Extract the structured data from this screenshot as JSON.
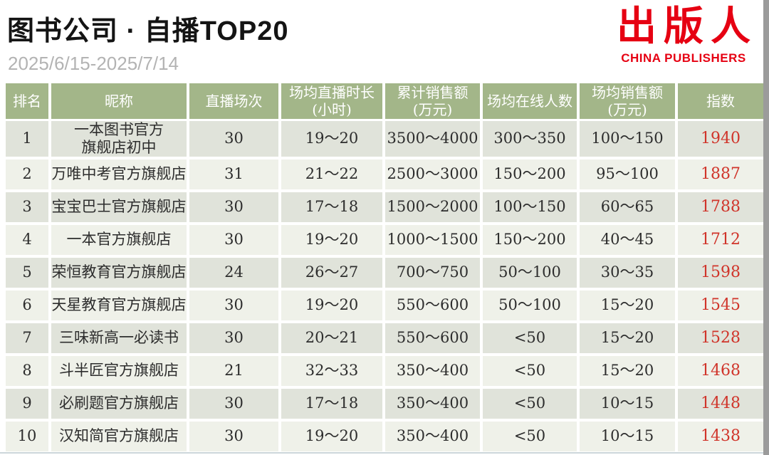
{
  "page": {
    "title": "图书公司 · 自播TOP20",
    "date_range": "2025/6/15-2025/7/14"
  },
  "logo": {
    "cn": "出版人",
    "en": "CHINA PUBLISHERS",
    "color": "#e60012"
  },
  "colors": {
    "header_green": "#a3b689",
    "row_dark": "#e0e3da",
    "row_light": "#eff1e9",
    "index_red": "#d0342a",
    "date_gray": "#b3b3b3"
  },
  "table": {
    "columns": [
      "排名",
      "昵称",
      "直播场次",
      "场均直播时长\n(小时)",
      "累计销售额\n(万元)",
      "场均在线人数",
      "场均销售额\n(万元)",
      "指数"
    ],
    "rows": [
      {
        "rank": "1",
        "name": "一本图书官方\n旗舰店初中",
        "sessions": "30",
        "avg_duration": "19～20",
        "total_sales": "3500～4000",
        "avg_online": "300～350",
        "avg_sales": "100～150",
        "index": "1940"
      },
      {
        "rank": "2",
        "name": "万唯中考官方旗舰店",
        "sessions": "31",
        "avg_duration": "21～22",
        "total_sales": "2500～3000",
        "avg_online": "150～200",
        "avg_sales": "95～100",
        "index": "1887"
      },
      {
        "rank": "3",
        "name": "宝宝巴士官方旗舰店",
        "sessions": "30",
        "avg_duration": "17～18",
        "total_sales": "1500～2000",
        "avg_online": "100～150",
        "avg_sales": "60～65",
        "index": "1788"
      },
      {
        "rank": "4",
        "name": "一本官方旗舰店",
        "sessions": "30",
        "avg_duration": "19～20",
        "total_sales": "1000～1500",
        "avg_online": "150～200",
        "avg_sales": "40～45",
        "index": "1712"
      },
      {
        "rank": "5",
        "name": "荣恒教育官方旗舰店",
        "sessions": "24",
        "avg_duration": "26～27",
        "total_sales": "700～750",
        "avg_online": "50～100",
        "avg_sales": "30～35",
        "index": "1598"
      },
      {
        "rank": "6",
        "name": "天星教育官方旗舰店",
        "sessions": "30",
        "avg_duration": "19～20",
        "total_sales": "550～600",
        "avg_online": "50～100",
        "avg_sales": "15～20",
        "index": "1545"
      },
      {
        "rank": "7",
        "name": "三味新高一必读书",
        "sessions": "30",
        "avg_duration": "20～21",
        "total_sales": "550～600",
        "avg_online": "<50",
        "avg_sales": "15～20",
        "index": "1528"
      },
      {
        "rank": "8",
        "name": "斗半匠官方旗舰店",
        "sessions": "21",
        "avg_duration": "32～33",
        "total_sales": "350～400",
        "avg_online": "<50",
        "avg_sales": "15～20",
        "index": "1468"
      },
      {
        "rank": "9",
        "name": "必刷题官方旗舰店",
        "sessions": "30",
        "avg_duration": "17～18",
        "total_sales": "350～400",
        "avg_online": "<50",
        "avg_sales": "10～15",
        "index": "1448"
      },
      {
        "rank": "10",
        "name": "汉知简官方旗舰店",
        "sessions": "30",
        "avg_duration": "19～20",
        "total_sales": "350～400",
        "avg_online": "<50",
        "avg_sales": "10～15",
        "index": "1438"
      }
    ]
  },
  "chart_data": {
    "type": "table",
    "title": "图书公司 · 自播TOP20",
    "period": "2025/6/15-2025/7/14",
    "columns": [
      "排名",
      "昵称",
      "直播场次",
      "场均直播时长(小时)",
      "累计销售额(万元)",
      "场均在线人数",
      "场均销售额(万元)",
      "指数"
    ],
    "rows": [
      [
        "1",
        "一本图书官方旗舰店初中",
        "30",
        "19～20",
        "3500～4000",
        "300～350",
        "100～150",
        "1940"
      ],
      [
        "2",
        "万唯中考官方旗舰店",
        "31",
        "21～22",
        "2500～3000",
        "150～200",
        "95～100",
        "1887"
      ],
      [
        "3",
        "宝宝巴士官方旗舰店",
        "30",
        "17～18",
        "1500～2000",
        "100～150",
        "60～65",
        "1788"
      ],
      [
        "4",
        "一本官方旗舰店",
        "30",
        "19～20",
        "1000～1500",
        "150～200",
        "40～45",
        "1712"
      ],
      [
        "5",
        "荣恒教育官方旗舰店",
        "24",
        "26～27",
        "700～750",
        "50～100",
        "30～35",
        "1598"
      ],
      [
        "6",
        "天星教育官方旗舰店",
        "30",
        "19～20",
        "550～600",
        "50～100",
        "15～20",
        "1545"
      ],
      [
        "7",
        "三味新高一必读书",
        "30",
        "20～21",
        "550～600",
        "<50",
        "15～20",
        "1528"
      ],
      [
        "8",
        "斗半匠官方旗舰店",
        "21",
        "32～33",
        "350～400",
        "<50",
        "15～20",
        "1468"
      ],
      [
        "9",
        "必刷题官方旗舰店",
        "30",
        "17～18",
        "350～400",
        "<50",
        "10～15",
        "1448"
      ],
      [
        "10",
        "汉知简官方旗舰店",
        "30",
        "19～20",
        "350～400",
        "<50",
        "10～15",
        "1438"
      ]
    ]
  }
}
